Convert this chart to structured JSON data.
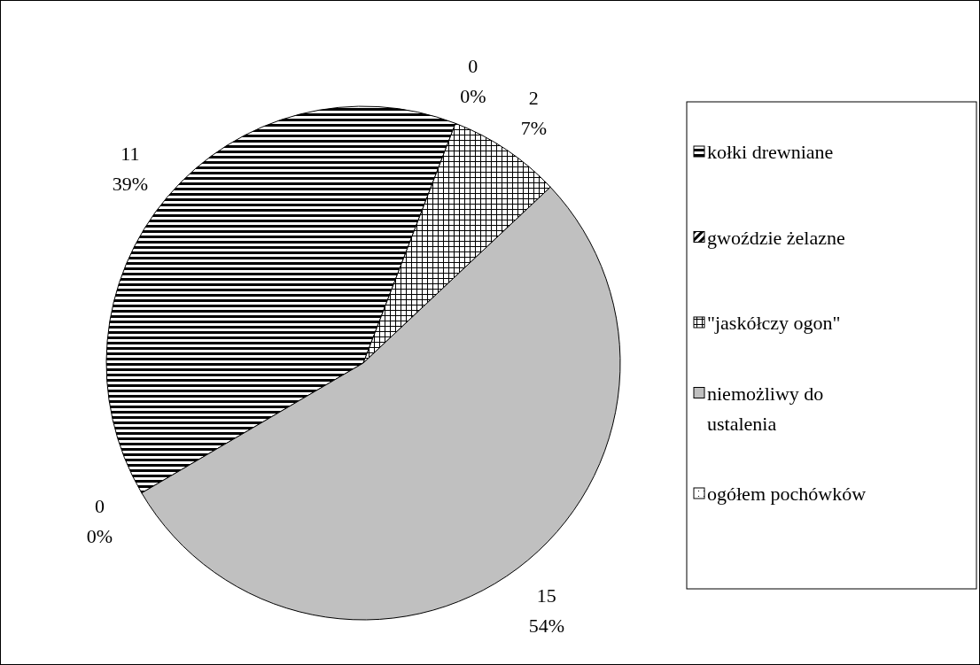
{
  "chart_data": {
    "type": "pie",
    "categories": [
      "kołki drewniane",
      "gwoździe żelazne",
      "\"jaskółczy ogon\"",
      "niemożliwy do ustalenia",
      "ogółem pochówków"
    ],
    "values": [
      11,
      0,
      2,
      15,
      0
    ],
    "value_labels": [
      "11\n39%",
      "0\n0%",
      "2\n7%",
      "15\n54%",
      "0\n0%"
    ],
    "colors": [
      "#000000",
      "#000000",
      "#000000",
      "#c0c0c0",
      "#000000"
    ],
    "legend": "right"
  }
}
